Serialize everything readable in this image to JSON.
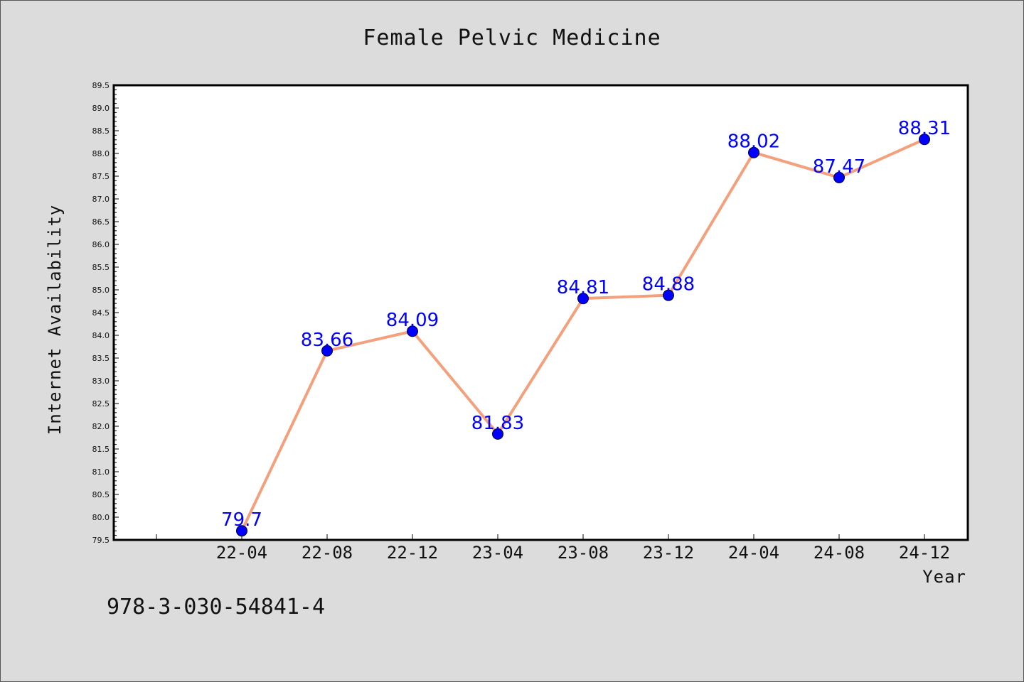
{
  "chart_data": {
    "type": "line",
    "title": "Female Pelvic Medicine",
    "xlabel": "Year",
    "ylabel": "Internet Availability",
    "categories": [
      "22-04",
      "22-08",
      "22-12",
      "23-04",
      "23-08",
      "23-12",
      "24-04",
      "24-08",
      "24-12"
    ],
    "values": [
      79.7,
      83.66,
      84.09,
      81.83,
      84.81,
      84.88,
      88.02,
      87.47,
      88.31
    ],
    "data_labels": [
      "79.7",
      "83.66",
      "84.09",
      "81.83",
      "84.81",
      "84.88",
      "88.02",
      "87.47",
      "88.31"
    ],
    "ylim": [
      79.5,
      89.5
    ],
    "y_ticks": [
      "79.5",
      "80.0",
      "80.5",
      "81.0",
      "81.5",
      "82.0",
      "82.5",
      "83.0",
      "83.5",
      "84.0",
      "84.5",
      "85.0",
      "85.5",
      "86.0",
      "86.5",
      "87.0",
      "87.5",
      "88.0",
      "88.5",
      "89.0",
      "89.5"
    ],
    "grid": false,
    "legend": "none",
    "colors": {
      "line": "#f4a07c",
      "marker": "#0000ff",
      "label": "#0000ff",
      "plot_bg": "#ffffff",
      "page_bg": "#dcdcdc"
    }
  },
  "footer_text": "978-3-030-54841-4"
}
